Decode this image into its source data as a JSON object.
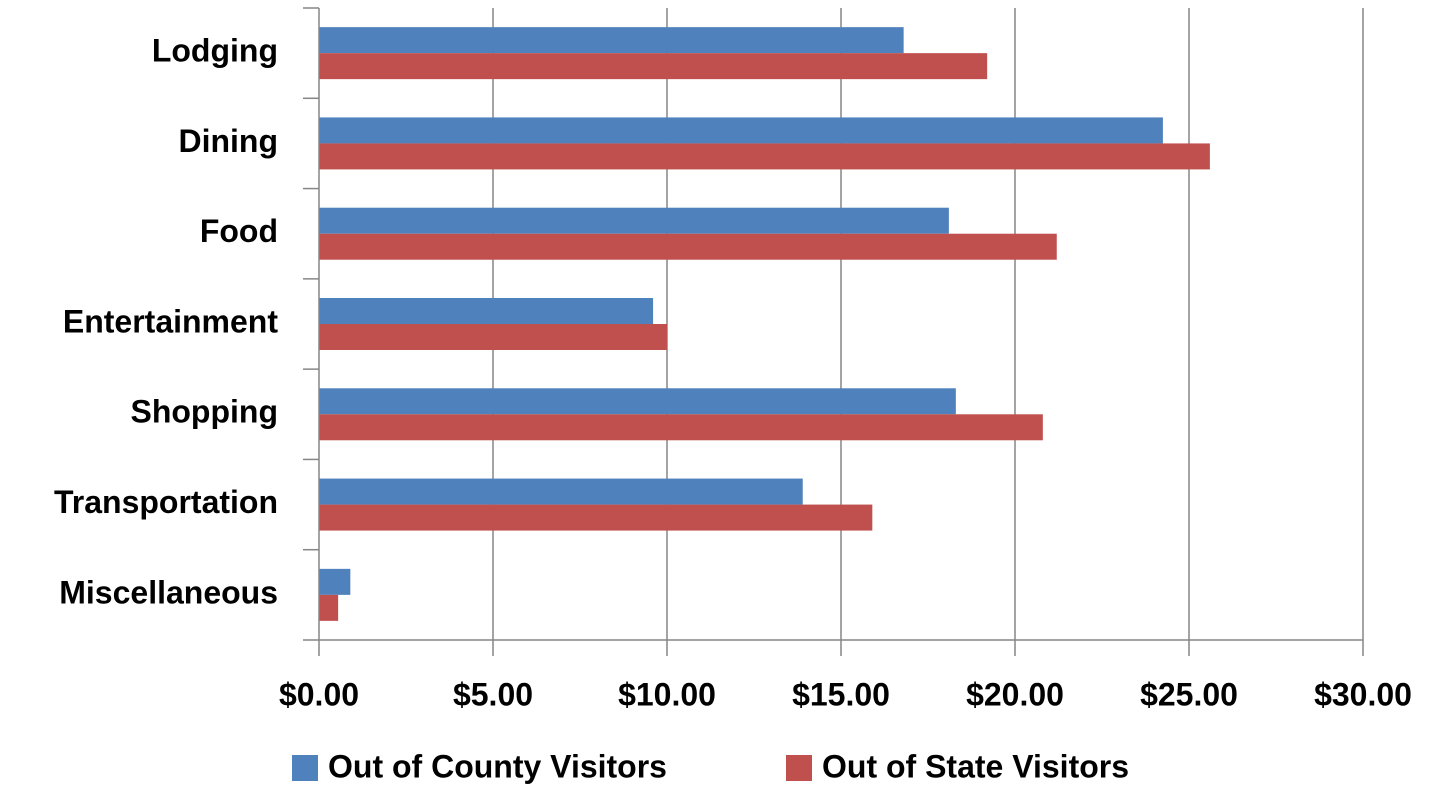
{
  "chart_data": {
    "type": "hbar",
    "categories": [
      "Lodging",
      "Dining",
      "Food",
      "Entertainment",
      "Shopping",
      "Transportation",
      "Miscellaneous"
    ],
    "series": [
      {
        "name": "Out of County Visitors",
        "color": "#4f81bd",
        "values": [
          16.8,
          24.25,
          18.1,
          9.6,
          18.3,
          13.9,
          0.9
        ]
      },
      {
        "name": "Out of State Visitors",
        "color": "#c0504d",
        "values": [
          19.2,
          25.6,
          21.2,
          10.0,
          20.8,
          15.9,
          0.55
        ]
      }
    ],
    "xlim": [
      0,
      30
    ],
    "xticks": [
      {
        "value": 0,
        "label": "$0.00"
      },
      {
        "value": 5,
        "label": "$5.00"
      },
      {
        "value": 10,
        "label": "$10.00"
      },
      {
        "value": 15,
        "label": "$15.00"
      },
      {
        "value": 20,
        "label": "$20.00"
      },
      {
        "value": 25,
        "label": "$25.00"
      },
      {
        "value": 30,
        "label": "$30.00"
      }
    ],
    "grid": true,
    "legend": "bottom"
  }
}
